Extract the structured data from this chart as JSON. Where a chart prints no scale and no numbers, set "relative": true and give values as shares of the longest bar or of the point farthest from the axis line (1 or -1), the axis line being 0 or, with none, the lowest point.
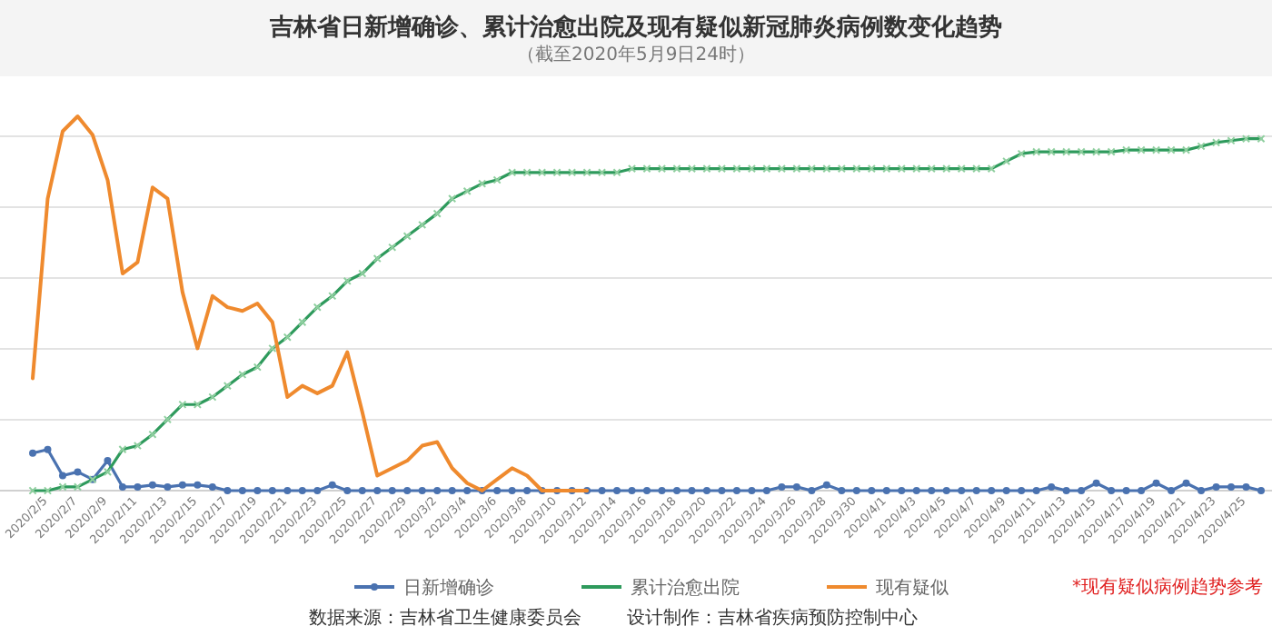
{
  "chart_data": {
    "type": "line",
    "title": "吉林省日新增确诊、累计治愈出院及现有疑似新冠肺炎病例数变化趋势",
    "subtitle": "（截至2020年5月9日24时）",
    "relative": true,
    "grid": "y",
    "legend": "bottom",
    "categories": [
      null,
      "2020/2/5",
      null,
      "2020/2/7",
      null,
      "2020/2/9",
      null,
      "2020/2/11",
      null,
      "2020/2/13",
      null,
      "2020/2/15",
      null,
      "2020/2/17",
      null,
      "2020/2/19",
      null,
      "2020/2/21",
      null,
      "2020/2/23",
      null,
      "2020/2/25",
      null,
      "2020/2/27",
      null,
      "2020/2/29",
      null,
      "2020/3/2",
      null,
      "2020/3/4",
      null,
      "2020/3/6",
      null,
      "2020/3/8",
      null,
      "2020/3/10",
      null,
      "2020/3/12",
      null,
      "2020/3/14",
      null,
      "2020/3/16",
      null,
      "2020/3/18",
      null,
      "2020/3/20",
      null,
      "2020/3/22",
      null,
      "2020/3/24",
      null,
      "2020/3/26",
      null,
      "2020/3/28",
      null,
      "2020/3/30",
      null,
      "2020/4/1",
      null,
      "2020/4/3",
      null,
      "2020/4/5",
      null,
      "2020/4/7",
      null,
      "2020/4/9",
      null,
      "2020/4/11",
      null,
      "2020/4/13",
      null,
      "2020/4/15",
      null,
      "2020/4/17",
      null,
      "2020/4/19",
      null,
      "2020/4/21",
      null,
      "2020/4/23",
      null,
      "2020/4/25",
      null
    ],
    "series": [
      {
        "name": "日新增确诊",
        "color": "#4a72b0",
        "marker": "circle",
        "values": [
          0.1,
          0.11,
          0.04,
          0.05,
          0.03,
          0.08,
          0.01,
          0.01,
          0.015,
          0.01,
          0.015,
          0.015,
          0.01,
          0,
          0,
          0,
          0,
          0,
          0,
          0,
          0.015,
          0,
          0,
          0,
          0,
          0,
          0,
          0,
          0,
          0,
          0,
          0,
          0,
          0,
          0,
          0,
          0,
          0,
          0,
          0,
          0,
          0,
          0,
          0,
          0,
          0,
          0,
          0,
          0,
          0,
          0.01,
          0.01,
          0,
          0.015,
          0,
          0,
          0,
          0,
          0,
          0,
          0,
          0,
          0,
          0,
          0,
          0,
          0,
          0,
          0.01,
          0,
          0,
          0.02,
          0,
          0,
          0,
          0.02,
          0,
          0.02,
          0,
          0.01,
          0.01,
          0.01,
          0
        ]
      },
      {
        "name": "累计治愈出院",
        "color": "#2e9a5c",
        "marker": "cross",
        "values": [
          0,
          0,
          0.01,
          0.01,
          0.03,
          0.05,
          0.11,
          0.12,
          0.15,
          0.19,
          0.23,
          0.23,
          0.25,
          0.28,
          0.31,
          0.33,
          0.38,
          0.41,
          0.45,
          0.49,
          0.52,
          0.56,
          0.58,
          0.62,
          0.65,
          0.68,
          0.71,
          0.74,
          0.78,
          0.8,
          0.82,
          0.83,
          0.85,
          0.85,
          0.85,
          0.85,
          0.85,
          0.85,
          0.85,
          0.85,
          0.86,
          0.86,
          0.86,
          0.86,
          0.86,
          0.86,
          0.86,
          0.86,
          0.86,
          0.86,
          0.86,
          0.86,
          0.86,
          0.86,
          0.86,
          0.86,
          0.86,
          0.86,
          0.86,
          0.86,
          0.86,
          0.86,
          0.86,
          0.86,
          0.86,
          0.88,
          0.9,
          0.905,
          0.905,
          0.905,
          0.905,
          0.905,
          0.905,
          0.91,
          0.91,
          0.91,
          0.91,
          0.91,
          0.92,
          0.93,
          0.935,
          0.94,
          0.94
        ]
      },
      {
        "name": "现有疑似",
        "color": "#ef8a2e",
        "marker": "none",
        "values": [
          0.3,
          0.78,
          0.96,
          1.0,
          0.95,
          0.83,
          0.58,
          0.61,
          0.81,
          0.78,
          0.53,
          0.38,
          0.52,
          0.49,
          0.48,
          0.5,
          0.45,
          0.25,
          0.28,
          0.26,
          0.28,
          0.37,
          0.21,
          0.04,
          0.06,
          0.08,
          0.12,
          0.13,
          0.06,
          0.02,
          0,
          0.03,
          0.06,
          0.04,
          0,
          0,
          0,
          0,
          null,
          null,
          null,
          null,
          null,
          null,
          null,
          null,
          null,
          null,
          null,
          null,
          null,
          null,
          null,
          null,
          null,
          null,
          null,
          null,
          null,
          null,
          null,
          null,
          null,
          null,
          null,
          null,
          null,
          null,
          null,
          null,
          null,
          null,
          null,
          null,
          null,
          null,
          null,
          null,
          null,
          null,
          null,
          null,
          null
        ]
      }
    ],
    "annotations": [
      "*现有疑似病例趋势参考",
      "数据来源：吉林省卫生健康委员会",
      "设计制作：吉林省疾病预防控制中心"
    ]
  }
}
